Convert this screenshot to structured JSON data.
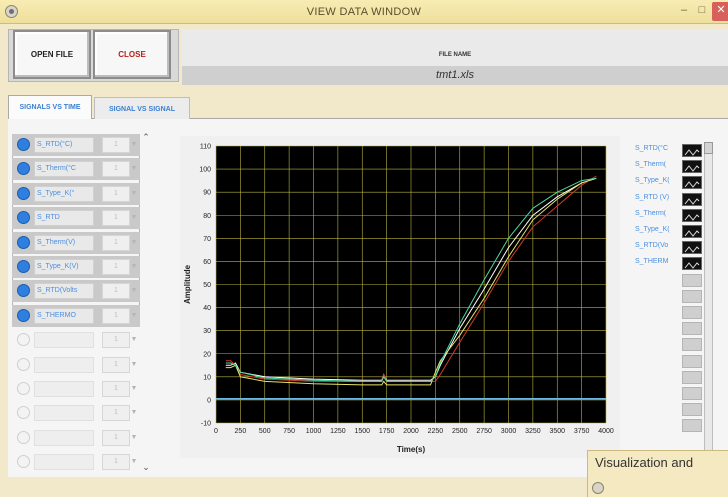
{
  "window": {
    "title": "VIEW DATA WINDOW",
    "min": "–",
    "max": "□",
    "close": "✕"
  },
  "toolbar": {
    "open_label": "OPEN FILE",
    "close_label": "CLOSE"
  },
  "file": {
    "label": "FILE NAME",
    "value": "tmt1.xls"
  },
  "tabs": [
    {
      "label": "SIGNALS VS TIME",
      "active": true
    },
    {
      "label": "SIGNAL VS SIGNAL",
      "active": false
    }
  ],
  "signals": [
    {
      "name": "S_RTD(°C)",
      "value": "1",
      "on": true
    },
    {
      "name": "S_Therm(°C",
      "value": "1",
      "on": true
    },
    {
      "name": "S_Type_K(°",
      "value": "1",
      "on": true
    },
    {
      "name": "S_RTD",
      "value": "1",
      "on": true
    },
    {
      "name": "S_Therm(V)",
      "value": "1",
      "on": true
    },
    {
      "name": "S_Type_K(V)",
      "value": "1",
      "on": true
    },
    {
      "name": "S_RTD(Volts",
      "value": "1",
      "on": true
    },
    {
      "name": "S_THERMO",
      "value": "1",
      "on": true
    },
    {
      "name": "",
      "value": "1",
      "on": false
    },
    {
      "name": "",
      "value": "1",
      "on": false
    },
    {
      "name": "",
      "value": "1",
      "on": false
    },
    {
      "name": "",
      "value": "1",
      "on": false
    },
    {
      "name": "",
      "value": "1",
      "on": false
    },
    {
      "name": "",
      "value": "1",
      "on": false
    }
  ],
  "legend": [
    "S_RTD(°C",
    "S_Therm(",
    "S_Type_K(",
    "S_RTD (V)",
    "S_Therm(",
    "S_Type_K(",
    "S_RTD(Vo",
    "S_THERM",
    "",
    "",
    "",
    "",
    "",
    "",
    "",
    "",
    "",
    ""
  ],
  "popup": {
    "text": "Visualization and"
  },
  "chart_data": {
    "type": "line",
    "xlabel": "Time(s)",
    "ylabel": "Amplitude",
    "xlim": [
      0,
      4000
    ],
    "ylim": [
      -10,
      110
    ],
    "xticks": [
      0,
      250,
      500,
      750,
      1000,
      1250,
      1500,
      1750,
      2000,
      2250,
      2500,
      2750,
      3000,
      3250,
      3500,
      3750,
      4000
    ],
    "yticks": [
      -10,
      0,
      10,
      20,
      30,
      40,
      50,
      60,
      70,
      80,
      90,
      100,
      110
    ],
    "grid": true,
    "background": "#000000",
    "grid_color": "#b9b340",
    "series": [
      {
        "name": "S_RTD(°C)",
        "color": "#ffffff",
        "x": [
          100,
          150,
          200,
          250,
          500,
          1000,
          1500,
          1700,
          1720,
          1750,
          2200,
          2250,
          2300,
          2500,
          2750,
          3000,
          3250,
          3500,
          3750,
          3900
        ],
        "y": [
          15,
          15,
          16,
          12,
          10,
          9,
          8.5,
          8.5,
          11,
          8.5,
          8.5,
          10,
          15,
          31,
          48,
          66,
          80,
          88,
          94,
          96
        ]
      },
      {
        "name": "S_Therm(°C",
        "color": "#d23a2a",
        "x": [
          100,
          150,
          200,
          250,
          500,
          1000,
          1500,
          1700,
          1720,
          1750,
          2200,
          2250,
          2300,
          2500,
          2750,
          3000,
          3250,
          3500,
          3750,
          3900
        ],
        "y": [
          17,
          17,
          15,
          11,
          9,
          8,
          8,
          8,
          11,
          8,
          8,
          8,
          11,
          25,
          42,
          60,
          75,
          84,
          93,
          97
        ]
      },
      {
        "name": "S_Type_K(°",
        "color": "#e6e36a",
        "x": [
          100,
          150,
          200,
          250,
          500,
          1000,
          1500,
          1700,
          1720,
          1750,
          2200,
          2250,
          2300,
          2500,
          2750,
          3000,
          3250,
          3500,
          3750,
          3900
        ],
        "y": [
          14,
          14,
          15,
          10,
          8,
          7,
          6.5,
          6.5,
          8,
          6.5,
          6.5,
          12,
          17,
          28,
          44,
          62,
          78,
          87,
          94,
          96
        ]
      },
      {
        "name": "S_RTD",
        "color": "#4dd8a0",
        "x": [
          100,
          150,
          200,
          250,
          500,
          1000,
          1500,
          1700,
          1720,
          1750,
          2200,
          2250,
          2300,
          2500,
          2750,
          3000,
          3250,
          3500,
          3750,
          3900
        ],
        "y": [
          16,
          16,
          15,
          12,
          9.5,
          8.5,
          8,
          8,
          10,
          8,
          8,
          10,
          16,
          33,
          52,
          70,
          83,
          90,
          95,
          96
        ]
      },
      {
        "name": "S_Therm(V)",
        "color": "#6fb0ff",
        "x": [
          0,
          4000
        ],
        "y": [
          0.5,
          0.5
        ]
      },
      {
        "name": "S_Type_K(V)",
        "color": "#c050d0",
        "x": [
          0,
          4000
        ],
        "y": [
          0.3,
          0.3
        ]
      },
      {
        "name": "S_RTD(Volts",
        "color": "#7fa8ff",
        "x": [
          0,
          4000
        ],
        "y": [
          0.6,
          0.6
        ]
      },
      {
        "name": "S_THERMO",
        "color": "#59c7c7",
        "x": [
          0,
          4000
        ],
        "y": [
          0.4,
          0.4
        ]
      }
    ]
  }
}
